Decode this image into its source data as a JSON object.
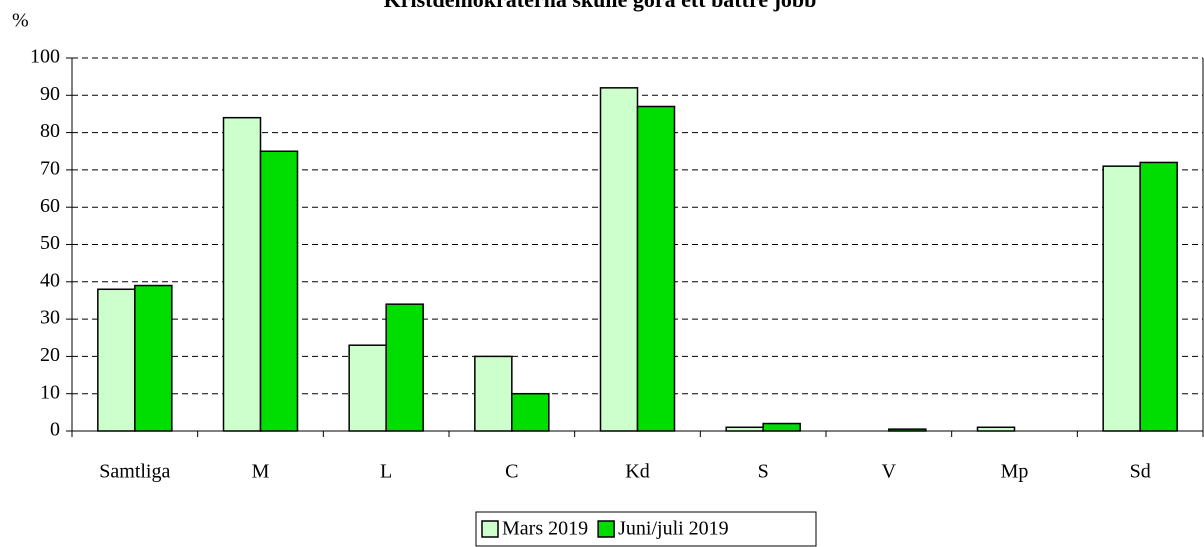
{
  "chart_data": {
    "type": "bar",
    "title": "Kristdemokraterna skulle göra ett bättre jobb",
    "y_label": "%",
    "categories": [
      "Samtliga",
      "M",
      "L",
      "C",
      "Kd",
      "S",
      "V",
      "Mp",
      "Sd"
    ],
    "series": [
      {
        "name": "Mars 2019",
        "color": "#ccffcc",
        "values": [
          38,
          84,
          23,
          20,
          92,
          1,
          0,
          1,
          71
        ]
      },
      {
        "name": "Juni/juli 2019",
        "color": "#00dd00",
        "values": [
          39,
          75,
          34,
          10,
          87,
          2,
          0.5,
          0,
          72
        ]
      }
    ],
    "ylim": [
      0,
      100
    ],
    "yticks": [
      0,
      10,
      20,
      30,
      40,
      50,
      60,
      70,
      80,
      90,
      100
    ],
    "grid": true,
    "legend": "bottom"
  }
}
